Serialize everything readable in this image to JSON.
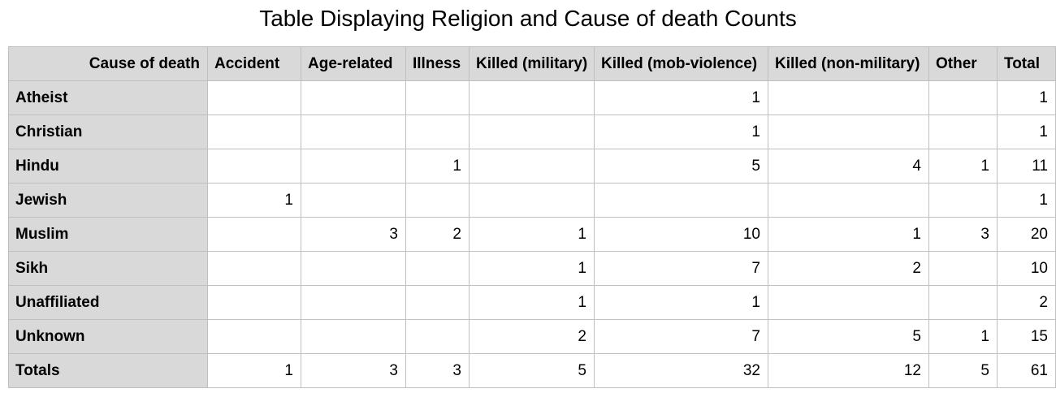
{
  "title": "Table Displaying Religion and Cause of death Counts",
  "table": {
    "corner_label": "Cause of death",
    "columns": [
      "Accident",
      "Age-related",
      "Illness",
      "Killed (military)",
      "Killed (mob-violence)",
      "Killed (non-military)",
      "Other",
      "Total"
    ],
    "rows": [
      {
        "label": "Atheist",
        "cells": [
          "",
          "",
          "",
          "",
          "1",
          "",
          "",
          "1"
        ]
      },
      {
        "label": "Christian",
        "cells": [
          "",
          "",
          "",
          "",
          "1",
          "",
          "",
          "1"
        ]
      },
      {
        "label": "Hindu",
        "cells": [
          "",
          "",
          "1",
          "",
          "5",
          "4",
          "1",
          "11"
        ]
      },
      {
        "label": "Jewish",
        "cells": [
          "1",
          "",
          "",
          "",
          "",
          "",
          "",
          "1"
        ]
      },
      {
        "label": "Muslim",
        "cells": [
          "",
          "3",
          "2",
          "1",
          "10",
          "1",
          "3",
          "20"
        ]
      },
      {
        "label": "Sikh",
        "cells": [
          "",
          "",
          "",
          "1",
          "7",
          "2",
          "",
          "10"
        ]
      },
      {
        "label": "Unaffiliated",
        "cells": [
          "",
          "",
          "",
          "1",
          "1",
          "",
          "",
          "2"
        ]
      },
      {
        "label": "Unknown",
        "cells": [
          "",
          "",
          "",
          "2",
          "7",
          "5",
          "1",
          "15"
        ]
      },
      {
        "label": "Totals",
        "cells": [
          "1",
          "3",
          "3",
          "5",
          "32",
          "12",
          "5",
          "61"
        ]
      }
    ]
  }
}
